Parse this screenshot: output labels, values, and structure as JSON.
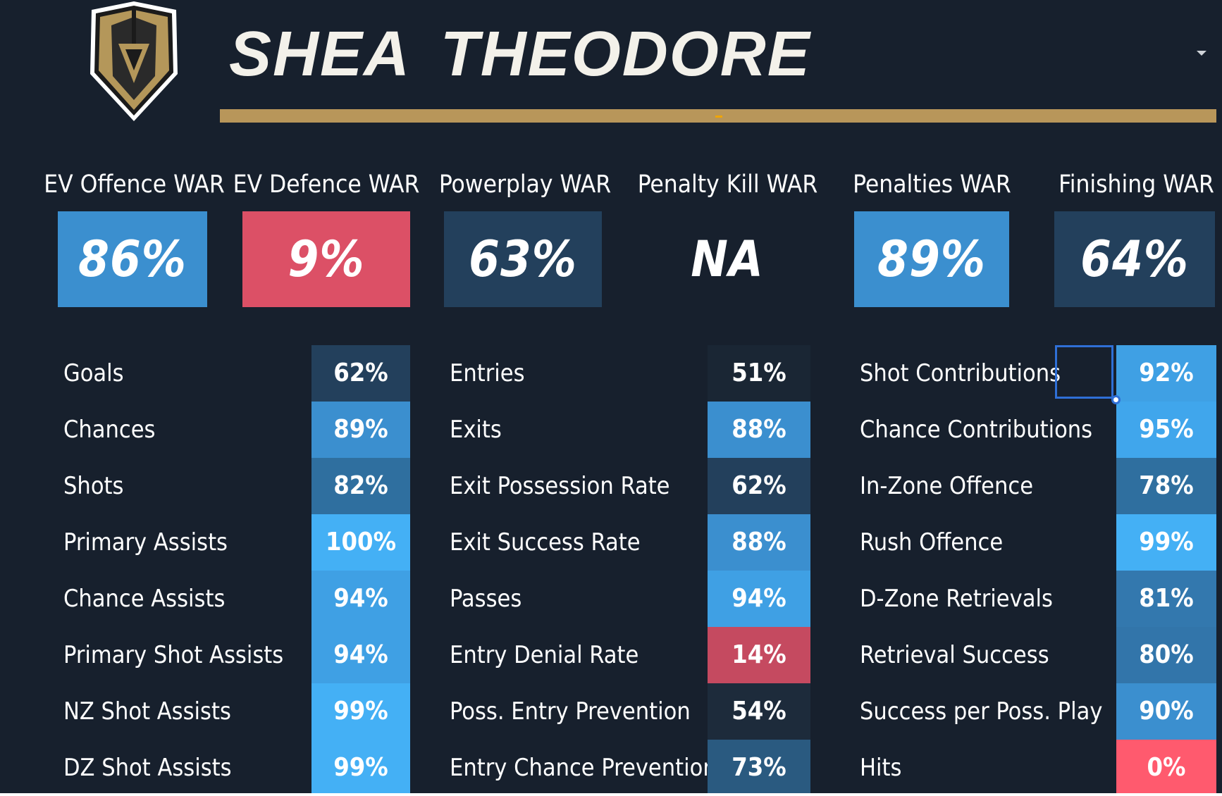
{
  "header": {
    "player_name": "SHEA THEODORE",
    "team_logo_icon": "vegas-golden-knights-helmet-icon",
    "dropdown_icon": "caret-down-icon"
  },
  "colors": {
    "background": "#17202d",
    "gold": "#b8965a",
    "pct_very_high": "#44b0f5",
    "pct_high": "#3b8fcf",
    "pct_mid_high": "#2f6f9f",
    "pct_mid": "#23405c",
    "pct_low": "#d24f66",
    "pct_none": "#ff5a6e"
  },
  "war": [
    {
      "label": "EV Offence WAR",
      "value": "86%",
      "percentile": 86
    },
    {
      "label": "EV Defence WAR",
      "value": "9%",
      "percentile": 9
    },
    {
      "label": "Powerplay WAR",
      "value": "63%",
      "percentile": 63
    },
    {
      "label": "Penalty Kill WAR",
      "value": "NA",
      "percentile": null
    },
    {
      "label": "Penalties WAR",
      "value": "89%",
      "percentile": 89
    },
    {
      "label": "Finishing WAR",
      "value": "64%",
      "percentile": 64
    }
  ],
  "stats": {
    "offence": [
      {
        "label": "Goals",
        "value": "62%"
      },
      {
        "label": "Chances",
        "value": "89%"
      },
      {
        "label": "Shots",
        "value": "82%"
      },
      {
        "label": "Primary Assists",
        "value": "100%"
      },
      {
        "label": "Chance Assists",
        "value": "94%"
      },
      {
        "label": "Primary Shot Assists",
        "value": "94%"
      },
      {
        "label": "NZ Shot Assists",
        "value": "99%"
      },
      {
        "label": "DZ Shot Assists",
        "value": "99%"
      }
    ],
    "transition": [
      {
        "label": "Entries",
        "value": "51%"
      },
      {
        "label": "Exits",
        "value": "88%"
      },
      {
        "label": "Exit Possession Rate",
        "value": "62%"
      },
      {
        "label": "Exit Success Rate",
        "value": "88%"
      },
      {
        "label": "Passes",
        "value": "94%"
      },
      {
        "label": "Entry Denial Rate",
        "value": "14%"
      },
      {
        "label": "Poss. Entry Prevention",
        "value": "54%"
      },
      {
        "label": "Entry Chance Prevention",
        "value": "73%"
      }
    ],
    "contributions": [
      {
        "label": "Shot Contributions",
        "value": "92%"
      },
      {
        "label": "Chance Contributions",
        "value": "95%"
      },
      {
        "label": "In-Zone Offence",
        "value": "78%"
      },
      {
        "label": "Rush Offence",
        "value": "99%"
      },
      {
        "label": "D-Zone Retrievals",
        "value": "81%"
      },
      {
        "label": "Retrieval Success",
        "value": "80%"
      },
      {
        "label": "Success per Poss. Play",
        "value": "90%"
      },
      {
        "label": "Hits",
        "value": "0%"
      }
    ]
  }
}
